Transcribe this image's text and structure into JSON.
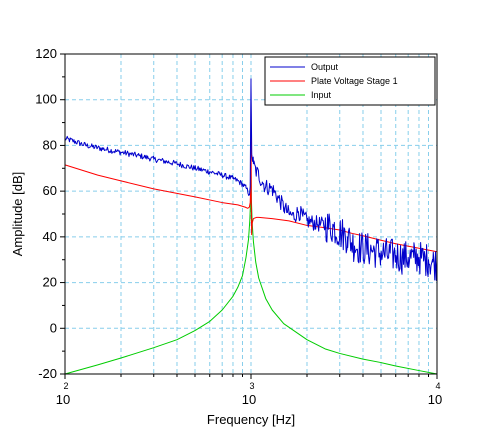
{
  "chart_data": {
    "type": "line",
    "xlabel": "Frequency [Hz]",
    "ylabel": "Amplitude [dB]",
    "xscale": "log",
    "xlim": [
      100,
      10000
    ],
    "ylim": [
      -20,
      120
    ],
    "grid": true,
    "legend_position": "top-right",
    "x_tick_labels": [
      {
        "value": 100,
        "base": "10",
        "exp": "2"
      },
      {
        "value": 1000,
        "base": "10",
        "exp": "3"
      },
      {
        "value": 10000,
        "base": "10",
        "exp": "4"
      }
    ],
    "y_ticks": [
      -20,
      0,
      20,
      40,
      60,
      80,
      100,
      120
    ],
    "series": [
      {
        "name": "Output",
        "color": "#0000cc",
        "noise": 2.5,
        "x": [
          100,
          110,
          130,
          160,
          200,
          250,
          300,
          400,
          500,
          600,
          700,
          800,
          850,
          900,
          940,
          960,
          980,
          990,
          1000,
          1010,
          1030,
          1060,
          1100,
          1150,
          1200,
          1300,
          1400,
          1500,
          1600,
          1700,
          1800,
          1900,
          2000,
          2200,
          2500,
          2800,
          3000,
          3300,
          3600,
          4000,
          4500,
          5000,
          5500,
          6000,
          6500,
          7000,
          7500,
          8000,
          8500,
          9000,
          9500,
          10000
        ],
        "y": [
          83,
          82,
          80,
          78.5,
          77,
          75.5,
          74,
          72,
          70,
          68.5,
          67,
          65.5,
          64.5,
          63,
          61.5,
          60,
          58.5,
          62,
          107,
          76,
          72,
          69,
          67,
          64,
          62,
          61,
          57,
          53,
          50,
          49,
          51,
          49,
          47,
          46,
          45,
          44,
          42,
          40,
          36,
          35,
          34,
          33,
          32,
          32,
          31,
          31,
          31,
          31,
          30,
          30,
          29,
          28
        ]
      },
      {
        "name": "Plate Voltage Stage 1",
        "color": "#ff0000",
        "noise": 0,
        "x": [
          100,
          150,
          200,
          300,
          500,
          700,
          850,
          930,
          960,
          980,
          990,
          995,
          1000,
          1004,
          1008,
          1015,
          1030,
          1070,
          1100,
          1300,
          1600,
          2000,
          2500,
          3000,
          3500,
          4000,
          5000,
          6000,
          8000,
          10000
        ],
        "y": [
          71.5,
          67,
          64.5,
          61,
          57.5,
          55,
          54,
          53,
          52.5,
          53,
          55,
          60,
          100,
          52,
          41,
          46,
          48,
          48.5,
          48.5,
          48,
          47,
          45,
          44,
          43,
          41.5,
          40.5,
          38.5,
          37,
          35,
          33.5
        ]
      },
      {
        "name": "Input",
        "color": "#00cc00",
        "noise": 0,
        "x": [
          100,
          150,
          200,
          300,
          400,
          500,
          600,
          700,
          800,
          850,
          900,
          940,
          970,
          985,
          995,
          1000,
          1005,
          1015,
          1030,
          1060,
          1100,
          1200,
          1300,
          1500,
          2000,
          2500,
          3000,
          4000,
          5000,
          6000,
          8000,
          10000
        ],
        "y": [
          -20,
          -16,
          -13,
          -8.5,
          -5,
          -1,
          3,
          8,
          14,
          18,
          23,
          31,
          39,
          47,
          56,
          69,
          56,
          46,
          38,
          29,
          22,
          13,
          8,
          2,
          -5,
          -9,
          -11,
          -13.5,
          -15,
          -16.5,
          -18.5,
          -20
        ]
      }
    ]
  }
}
